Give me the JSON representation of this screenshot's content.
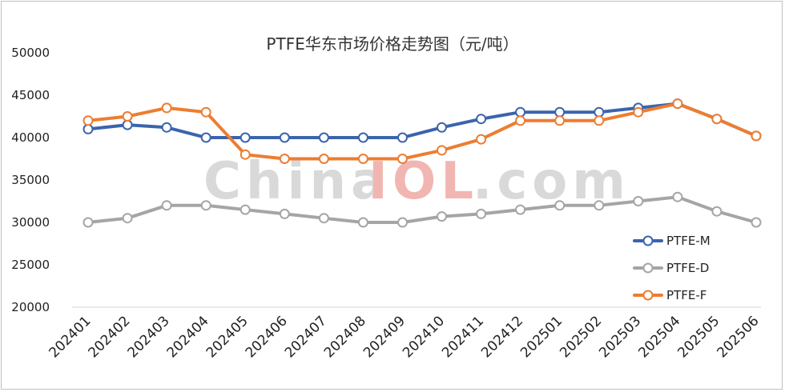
{
  "chart_data": {
    "type": "line",
    "title": "PTFE华东市场价格走势图（元/吨）",
    "categories": [
      "202401",
      "202402",
      "202403",
      "202404",
      "202405",
      "202406",
      "202407",
      "202408",
      "202409",
      "202410",
      "202411",
      "202412",
      "202501",
      "202502",
      "202503",
      "202504",
      "202505",
      "202506"
    ],
    "yticks": [
      "20000",
      "25000",
      "30000",
      "35000",
      "40000",
      "45000",
      "50000"
    ],
    "ylim": [
      20000,
      50000
    ],
    "series": [
      {
        "name": "PTFE-M",
        "color": "#3b64ad",
        "values": [
          41000,
          41500,
          41200,
          40000,
          40000,
          40000,
          40000,
          40000,
          40000,
          41200,
          42200,
          43000,
          43000,
          43000,
          43500,
          44000,
          42200,
          40200
        ]
      },
      {
        "name": "PTFE-D",
        "color": "#a5a5a5",
        "values": [
          30000,
          30500,
          32000,
          32000,
          31500,
          31000,
          30500,
          30000,
          30000,
          30700,
          31000,
          31500,
          32000,
          32000,
          32500,
          33000,
          31300,
          30000
        ]
      },
      {
        "name": "PTFE-F",
        "color": "#ed7d31",
        "values": [
          42000,
          42500,
          43500,
          43000,
          38000,
          37500,
          37500,
          37500,
          37500,
          38500,
          39800,
          42000,
          42000,
          42000,
          43000,
          44000,
          42200,
          40200
        ]
      }
    ],
    "legend_position": "right",
    "grid": false
  },
  "watermark": {
    "part1": "China",
    "part2": "IOL",
    "part3": ".com"
  }
}
